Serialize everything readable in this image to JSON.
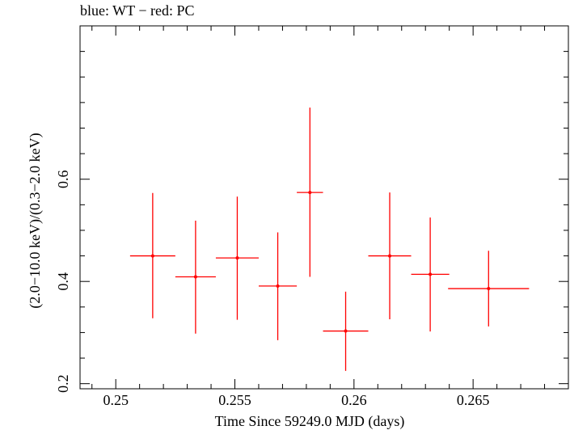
{
  "chart_data": {
    "type": "scatter",
    "title": "blue: WT − red: PC",
    "xlabel": "Time Since 59249.0 MJD (days)",
    "ylabel": "(2.0−10.0 keV)/(0.3−2.0 keV)",
    "xlim": [
      0.2485,
      0.269
    ],
    "ylim": [
      0.19,
      0.9
    ],
    "xticks": [
      0.25,
      0.255,
      0.26,
      0.265
    ],
    "xtick_labels": [
      "0.25",
      "0.255",
      "0.26",
      "0.265"
    ],
    "yticks": [
      0.2,
      0.4,
      0.6
    ],
    "ytick_labels": [
      "0.2",
      "0.4",
      "0.6"
    ],
    "grid": false,
    "series": [
      {
        "color": "#ff0000",
        "points": [
          {
            "x": 0.25155,
            "xerr": 0.00095,
            "y": 0.45,
            "yerr_lo": 0.122,
            "yerr_hi": 0.123
          },
          {
            "x": 0.25335,
            "xerr": 0.00085,
            "y": 0.409,
            "yerr_lo": 0.111,
            "yerr_hi": 0.11
          },
          {
            "x": 0.2551,
            "xerr": 0.0009,
            "y": 0.446,
            "yerr_lo": 0.121,
            "yerr_hi": 0.12
          },
          {
            "x": 0.2568,
            "xerr": 0.0008,
            "y": 0.391,
            "yerr_lo": 0.106,
            "yerr_hi": 0.105
          },
          {
            "x": 0.25815,
            "xerr": 0.00055,
            "y": 0.574,
            "yerr_lo": 0.165,
            "yerr_hi": 0.166
          },
          {
            "x": 0.25965,
            "xerr": 0.00095,
            "y": 0.303,
            "yerr_lo": 0.078,
            "yerr_hi": 0.077
          },
          {
            "x": 0.2615,
            "xerr": 0.0009,
            "y": 0.45,
            "yerr_lo": 0.124,
            "yerr_hi": 0.124
          },
          {
            "x": 0.2632,
            "xerr": 0.0008,
            "y": 0.414,
            "yerr_lo": 0.112,
            "yerr_hi": 0.111
          },
          {
            "x": 0.26565,
            "xerr": 0.0017,
            "y": 0.386,
            "yerr_lo": 0.074,
            "yerr_hi": 0.074
          }
        ]
      }
    ]
  }
}
